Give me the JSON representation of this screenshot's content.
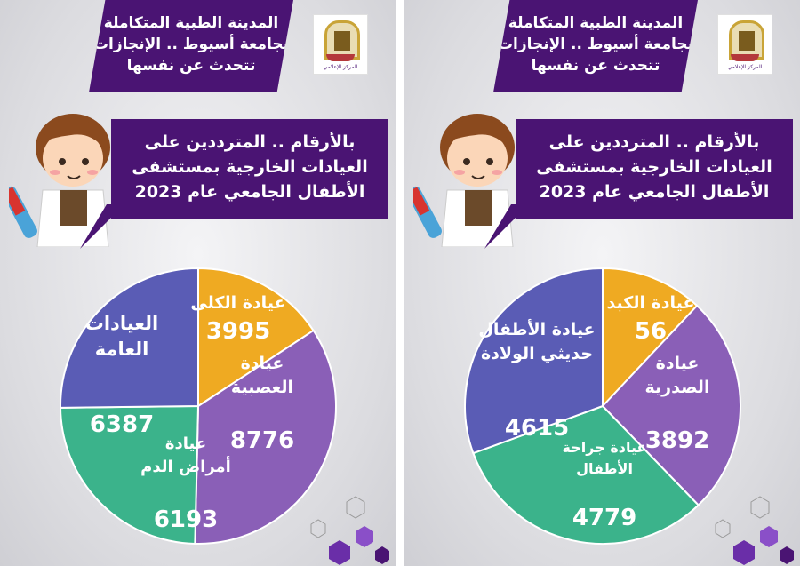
{
  "colors": {
    "purple_dark": "#4a1473",
    "pie_orange": "#efaa22",
    "pie_purple": "#8a5fb7",
    "pie_green": "#3bb38b",
    "pie_blue": "#5a5cb5"
  },
  "panels": [
    {
      "header_lines": [
        "المدينة الطبية المتكاملة",
        "بجامعة أسيوط .. الإنجازات",
        "تتحدث عن نفسها"
      ],
      "logo_caption": "المركز الإعلامي",
      "speech_lines": [
        "بالأرقام .. المترددين على",
        "العيادات الخارجية بمستشفى",
        "الأطفال الجامعي عام 2023"
      ]
    },
    {
      "header_lines": [
        "المدينة الطبية المتكاملة",
        "بجامعة أسيوط .. الإنجازات",
        "تتحدث عن نفسها"
      ],
      "logo_caption": "المركز الإعلامي",
      "speech_lines": [
        "بالأرقام .. المترددين على",
        "العيادات الخارجية بمستشفى",
        "الأطفال الجامعي عام 2023"
      ]
    }
  ],
  "chart_data": [
    {
      "type": "pie",
      "slices": [
        {
          "label_lines": [
            "عيادة الكلى"
          ],
          "value": 3995,
          "color": "#efaa22"
        },
        {
          "label_lines": [
            "عيادة",
            "العصبية"
          ],
          "value": 8776,
          "color": "#8a5fb7"
        },
        {
          "label_lines": [
            "عيادة",
            "أمراض الدم"
          ],
          "value": 6193,
          "color": "#3bb38b"
        },
        {
          "label_lines": [
            "العيادات",
            "العامة"
          ],
          "value": 6387,
          "color": "#5a5cb5"
        }
      ]
    },
    {
      "type": "pie",
      "slices": [
        {
          "label_lines": [
            "عيادة الكبد"
          ],
          "value": 56,
          "color": "#efaa22"
        },
        {
          "label_lines": [
            "عيادة",
            "الصدرية"
          ],
          "value": 3892,
          "color": "#8a5fb7"
        },
        {
          "label_lines": [
            "عيادة جراحة",
            "الأطفال"
          ],
          "value": 4779,
          "color": "#3bb38b"
        },
        {
          "label_lines": [
            "عيادة الأطفال",
            "حديثي الولادة"
          ],
          "value": 4615,
          "color": "#5a5cb5"
        }
      ]
    }
  ]
}
